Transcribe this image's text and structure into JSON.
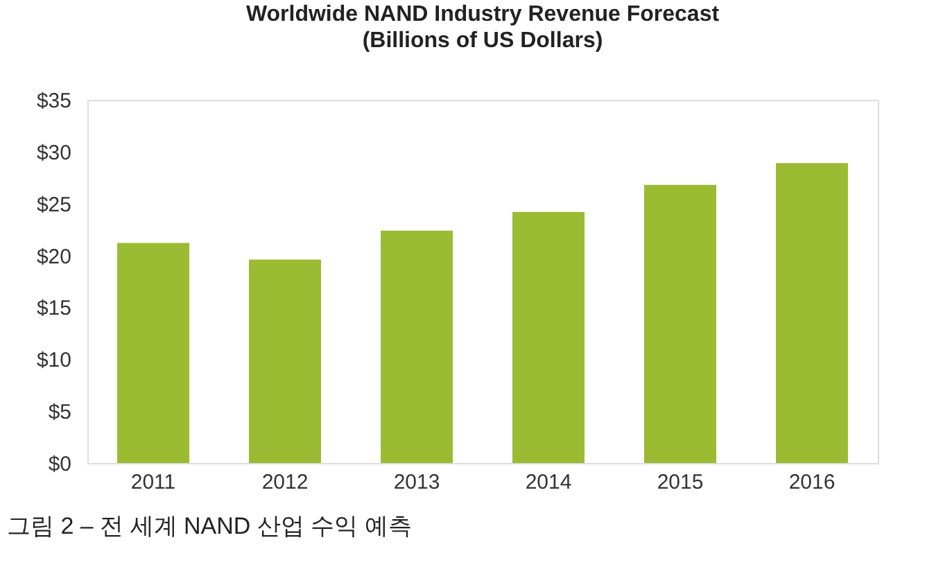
{
  "chart_data": {
    "type": "bar",
    "title": [
      "Worldwide NAND Industry Revenue Forecast",
      "(Billions of US Dollars)"
    ],
    "categories": [
      "2011",
      "2012",
      "2013",
      "2014",
      "2015",
      "2016"
    ],
    "values": [
      21.2,
      19.6,
      22.4,
      24.2,
      26.8,
      28.9
    ],
    "color": "#9bbb33",
    "ylim": [
      0,
      35
    ],
    "yticks": [
      {
        "value": 0,
        "label": "$0"
      },
      {
        "value": 5,
        "label": "$5"
      },
      {
        "value": 10,
        "label": "$10"
      },
      {
        "value": 15,
        "label": "$15"
      },
      {
        "value": 20,
        "label": "$20"
      },
      {
        "value": 25,
        "label": "$25"
      },
      {
        "value": 30,
        "label": "$30"
      },
      {
        "value": 35,
        "label": "$35"
      }
    ],
    "grid": false,
    "annotations": [
      "그림 2 – 전 세계 NAND 산업 수익 예측"
    ]
  }
}
